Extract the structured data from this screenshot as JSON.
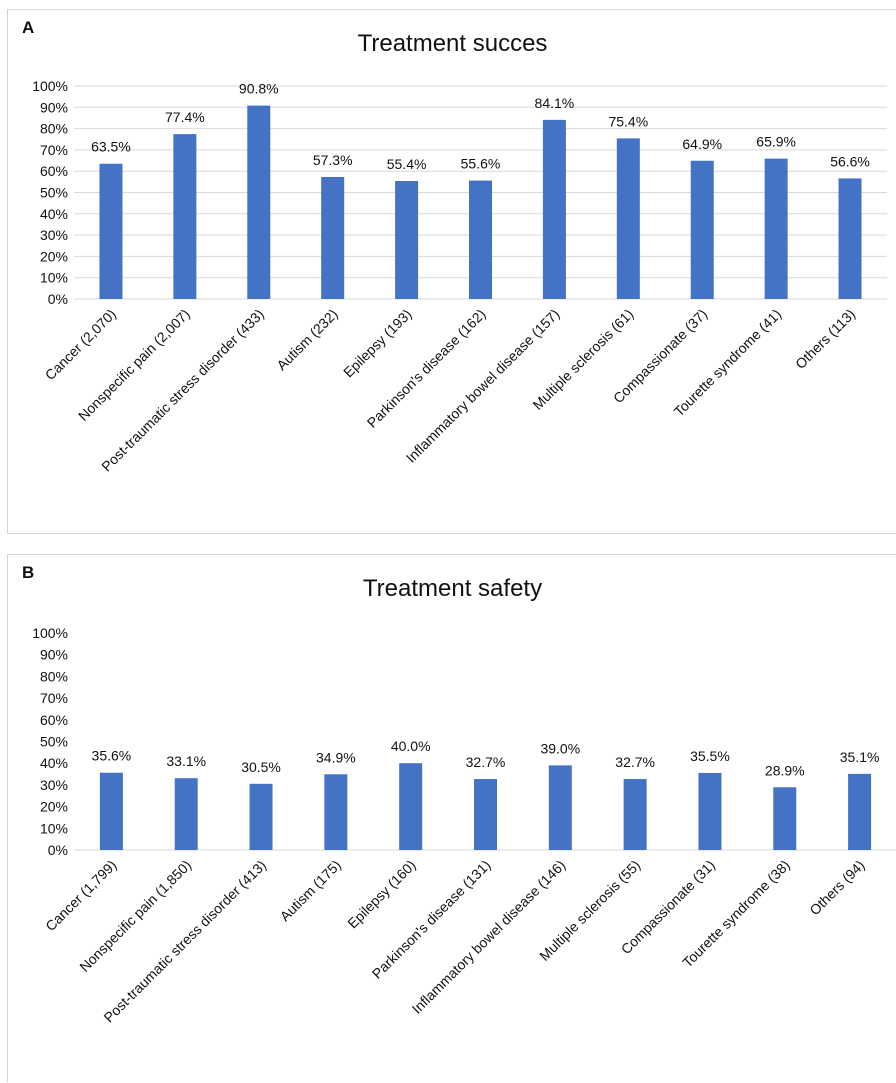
{
  "chart_data": [
    {
      "panel": "A",
      "type": "bar",
      "title": "Treatment succes",
      "categories": [
        "Cancer (2,070)",
        "Nonspecific pain (2,007)",
        "Post-traumatic stress disorder (433)",
        "Autism (232)",
        "Epilepsy (193)",
        "Parkinson's disease (162)",
        "Inflammatory bowel disease (157)",
        "Multiple sclerosis (61)",
        "Compassionate (37)",
        "Tourette syndrome (41)",
        "Others (113)"
      ],
      "values": [
        63.5,
        77.4,
        90.8,
        57.3,
        55.4,
        55.6,
        84.1,
        75.4,
        64.9,
        65.9,
        56.6
      ],
      "data_labels": [
        "63.5%",
        "77.4%",
        "90.8%",
        "57.3%",
        "55.4%",
        "55.6%",
        "84.1%",
        "75.4%",
        "64.9%",
        "65.9%",
        "56.6%"
      ],
      "yticks": [
        "0%",
        "10%",
        "20%",
        "30%",
        "40%",
        "50%",
        "60%",
        "70%",
        "80%",
        "90%",
        "100%"
      ],
      "ylim": [
        0,
        100
      ],
      "grid": true,
      "bar_color": "#4472C4",
      "grid_color": "#d9d9d9"
    },
    {
      "panel": "B",
      "type": "bar",
      "title": "Treatment safety",
      "categories": [
        "Cancer (1,799)",
        "Nonspecific pain (1,850)",
        "Post-traumatic stress disorder (413)",
        "Autism (175)",
        "Epilepsy (160)",
        "Parkinson's disease (131)",
        "Inflammatory bowel disease (146)",
        "Multiple sclerosis (55)",
        "Compassionate (31)",
        "Tourette syndrome (38)",
        "Others (94)"
      ],
      "values": [
        35.6,
        33.1,
        30.5,
        34.9,
        40.0,
        32.7,
        39.0,
        32.7,
        35.5,
        28.9,
        35.1
      ],
      "data_labels": [
        "35.6%",
        "33.1%",
        "30.5%",
        "34.9%",
        "40.0%",
        "32.7%",
        "39.0%",
        "32.7%",
        "35.5%",
        "28.9%",
        "35.1%"
      ],
      "yticks": [
        "0%",
        "10%",
        "20%",
        "30%",
        "40%",
        "50%",
        "60%",
        "70%",
        "80%",
        "90%",
        "100%"
      ],
      "ylim": [
        0,
        100
      ],
      "grid": false,
      "bar_color": "#4472C4",
      "grid_color": "#d9d9d9"
    }
  ]
}
